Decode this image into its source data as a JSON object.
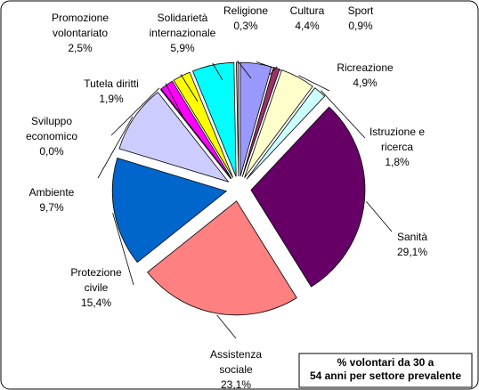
{
  "chart_data": {
    "type": "pie",
    "title": "% volontari da 30 a 54 anni per settore prevalente",
    "categories": [
      "Cultura",
      "Sport",
      "Ricreazione",
      "Istruzione e\nricerca",
      "Sanità",
      "Assistenza\nsociale",
      "Protezione\ncivile",
      "Ambiente",
      "Sviluppo\neconomico",
      "Tutela diritti",
      "Promozione\nvolontariato",
      "Solidarietà\ninternazionale",
      "Religione"
    ],
    "values": [
      4.4,
      0.9,
      4.9,
      1.8,
      29.1,
      23.1,
      15.4,
      9.7,
      0.0,
      1.9,
      2.5,
      5.9,
      0.3
    ],
    "value_labels": [
      "4,4%",
      "0,9%",
      "4,9%",
      "1,8%",
      "29,1%",
      "23,1%",
      "15,4%",
      "9,7%",
      "0,0%",
      "1,9%",
      "2,5%",
      "5,9%",
      "0,3%"
    ],
    "colors": [
      "#9999ff",
      "#993366",
      "#ffffcc",
      "#ccffff",
      "#660066",
      "#ff8080",
      "#0066cc",
      "#ccccff",
      "#000080",
      "#ff00ff",
      "#ffff00",
      "#00ffff",
      "#c0c0c0"
    ]
  }
}
